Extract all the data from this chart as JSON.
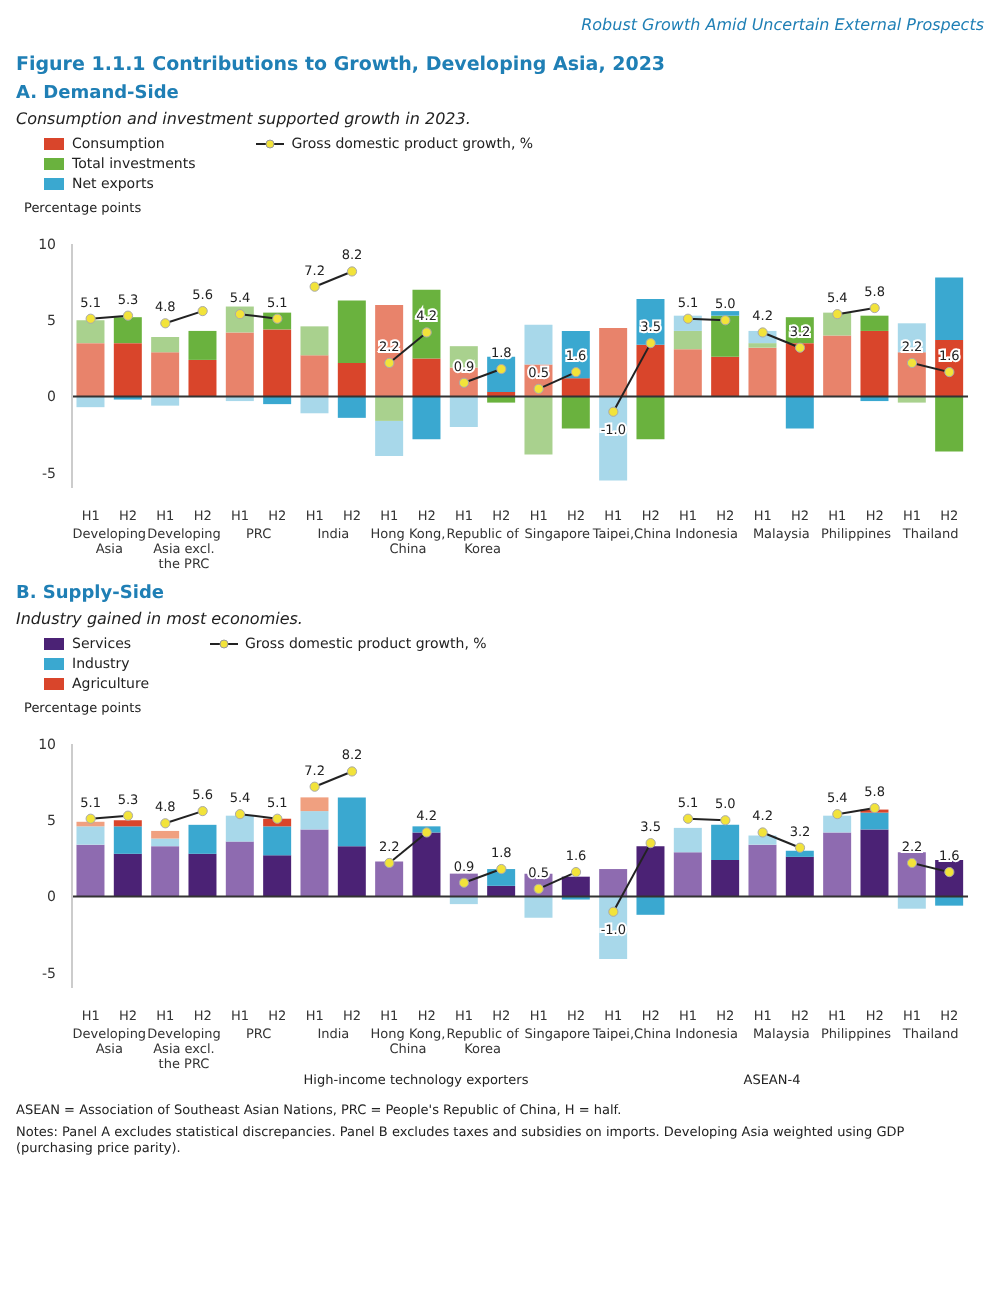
{
  "chart_data": [
    {
      "type": "bar",
      "title": "A. Demand-Side",
      "subtitle": "Consumption and investment supported growth in 2023.",
      "ylabel": "Percentage points",
      "annotations": [
        "Developing Asia",
        "Developing Asia excl. the PRC",
        "PRC",
        "India",
        "Hong Kong, China",
        "Republic of Korea",
        "Singapore",
        "Taipei,China",
        "Indonesia",
        "Malaysia",
        "Philippines",
        "Thailand",
        "Robust Growth Amid Uncertain External Prospects",
        "Figure 1.1.1  Contributions to Growth, Developing Asia, 2023"
      ],
      "categories": [
        "H1",
        "H2",
        "H1",
        "H2",
        "H1",
        "H2",
        "H1",
        "H2",
        "H1",
        "H2",
        "H1",
        "H2",
        "H1",
        "H2",
        "H1",
        "H2",
        "H1",
        "H2",
        "H1",
        "H2",
        "H1",
        "H2",
        "H1",
        "H2"
      ],
      "stacked": true,
      "ylim": [
        -6,
        10
      ],
      "yticks": [
        -5,
        0,
        5,
        10
      ],
      "legend": "top left",
      "marker": "circle",
      "ref_lines": [
        {
          "axis": "y",
          "value": 0,
          "color": "#333333"
        }
      ],
      "series": [
        {
          "name": "Consumption",
          "color": "#d9452b",
          "colors": [
            "#e8836b",
            "#d9452b",
            "#e8836b",
            "#d9452b",
            "#e8836b",
            "#d9452b",
            "#e8836b",
            "#d9452b",
            "#e8836b",
            "#d9452b",
            "#e8836b",
            "#d9452b",
            "#e8836b",
            "#d9452b",
            "#e8836b",
            "#d9452b",
            "#e8836b",
            "#d9452b",
            "#e8836b",
            "#d9452b",
            "#e8836b",
            "#d9452b",
            "#e8836b",
            "#d9452b"
          ],
          "values": [
            3.5,
            3.5,
            2.9,
            2.4,
            4.2,
            4.4,
            2.7,
            2.2,
            6.0,
            2.5,
            1.9,
            0.3,
            2.1,
            1.2,
            4.5,
            3.4,
            3.1,
            2.6,
            3.2,
            3.5,
            4.0,
            4.3,
            2.9,
            3.7
          ]
        },
        {
          "name": "Total investments",
          "color": "#6ab23e",
          "colors": [
            "#a9d18e",
            "#6ab23e",
            "#a9d18e",
            "#6ab23e",
            "#a9d18e",
            "#6ab23e",
            "#a9d18e",
            "#6ab23e",
            "#a9d18e",
            "#6ab23e",
            "#a9d18e",
            "#6ab23e",
            "#a9d18e",
            "#6ab23e",
            "#a9d18e",
            "#6ab23e",
            "#a9d18e",
            "#6ab23e",
            "#a9d18e",
            "#6ab23e",
            "#a9d18e",
            "#6ab23e",
            "#a9d18e",
            "#6ab23e"
          ],
          "values": [
            1.5,
            1.7,
            1.0,
            1.9,
            1.7,
            1.1,
            1.9,
            4.1,
            -1.6,
            4.5,
            1.4,
            -0.4,
            -3.8,
            -2.1,
            null,
            -2.8,
            1.2,
            2.7,
            0.3,
            1.7,
            1.5,
            1.0,
            -0.4,
            -3.6
          ]
        },
        {
          "name": "Net exports",
          "color": "#3aa8d0",
          "colors": [
            "#a8d8ea",
            "#3aa8d0",
            "#a8d8ea",
            "#3aa8d0",
            "#a8d8ea",
            "#3aa8d0",
            "#a8d8ea",
            "#3aa8d0",
            "#a8d8ea",
            "#3aa8d0",
            "#a8d8ea",
            "#3aa8d0",
            "#a8d8ea",
            "#3aa8d0",
            "#a8d8ea",
            "#3aa8d0",
            "#a8d8ea",
            "#3aa8d0",
            "#a8d8ea",
            "#3aa8d0",
            "#a8d8ea",
            "#3aa8d0",
            "#a8d8ea",
            "#3aa8d0"
          ],
          "values": [
            -0.7,
            -0.2,
            -0.6,
            null,
            -0.3,
            -0.5,
            -1.1,
            -1.4,
            -2.3,
            -2.8,
            -2.0,
            2.3,
            2.6,
            3.1,
            -5.5,
            3.0,
            1.0,
            0.3,
            0.8,
            -2.1,
            null,
            -0.3,
            1.9,
            4.1
          ]
        },
        {
          "name": "Gross domestic product growth, %",
          "type": "line",
          "color": "#f2e33a",
          "values": [
            5.1,
            5.3,
            4.8,
            5.6,
            5.4,
            5.1,
            7.2,
            8.2,
            2.2,
            4.2,
            0.9,
            1.8,
            0.5,
            1.6,
            -1.0,
            3.5,
            5.1,
            5.0,
            4.2,
            3.2,
            5.4,
            5.8,
            2.2,
            1.6
          ],
          "value_labels": [
            "5.1",
            "5.3",
            "4.8",
            "5.6",
            "5.4",
            "5.1",
            "7.2",
            "8.2",
            "2.2",
            "4.2",
            "0.9",
            "1.8",
            "0.5",
            "1.6",
            "-1.0",
            "3.5",
            "5.1",
            "5.0",
            "4.2",
            "3.2",
            "5.4",
            "5.8",
            "2.2",
            "1.6"
          ]
        }
      ]
    },
    {
      "type": "bar",
      "title": "B. Supply-Side",
      "subtitle": "Industry gained in most economies.",
      "ylabel": "Percentage points",
      "annotations": [
        "Developing Asia",
        "Developing Asia excl. the PRC",
        "PRC",
        "India",
        "Hong Kong, China",
        "Republic of Korea",
        "Singapore",
        "Taipei,China",
        "Indonesia",
        "Malaysia",
        "Philippines",
        "Thailand",
        "High-income technology exporters",
        "ASEAN-4",
        "ASEAN = Association of Southeast Asian Nations, PRC = People's Republic of China, H = half.",
        "Notes: Panel A excludes statistical discrepancies. Panel B excludes taxes and subsidies on imports. Developing Asia weighted using GDP (purchasing price parity)."
      ],
      "categories": [
        "H1",
        "H2",
        "H1",
        "H2",
        "H1",
        "H2",
        "H1",
        "H2",
        "H1",
        "H2",
        "H1",
        "H2",
        "H1",
        "H2",
        "H1",
        "H2",
        "H1",
        "H2",
        "H1",
        "H2",
        "H1",
        "H2",
        "H1",
        "H2"
      ],
      "stacked": true,
      "ylim": [
        -6,
        10
      ],
      "yticks": [
        -5,
        0,
        5,
        10
      ],
      "legend": "top left",
      "marker": "circle",
      "ref_lines": [
        {
          "axis": "y",
          "value": 0,
          "color": "#333333"
        }
      ],
      "series": [
        {
          "name": "Services",
          "color": "#4b2275",
          "colors": [
            "#8e6bb0",
            "#4b2275",
            "#8e6bb0",
            "#4b2275",
            "#8e6bb0",
            "#4b2275",
            "#8e6bb0",
            "#4b2275",
            "#8e6bb0",
            "#4b2275",
            "#8e6bb0",
            "#4b2275",
            "#8e6bb0",
            "#4b2275",
            "#8e6bb0",
            "#4b2275",
            "#8e6bb0",
            "#4b2275",
            "#8e6bb0",
            "#4b2275",
            "#8e6bb0",
            "#4b2275",
            "#8e6bb0",
            "#4b2275"
          ],
          "values": [
            3.4,
            2.8,
            3.3,
            2.8,
            3.6,
            2.7,
            4.4,
            3.3,
            2.3,
            4.2,
            1.5,
            0.7,
            1.5,
            1.3,
            1.8,
            3.3,
            2.9,
            2.4,
            3.4,
            2.6,
            4.2,
            4.4,
            2.9,
            2.4
          ]
        },
        {
          "name": "Industry",
          "color": "#3aa8d0",
          "colors": [
            "#a8d8ea",
            "#3aa8d0",
            "#a8d8ea",
            "#3aa8d0",
            "#a8d8ea",
            "#3aa8d0",
            "#a8d8ea",
            "#3aa8d0",
            "#a8d8ea",
            "#3aa8d0",
            "#a8d8ea",
            "#3aa8d0",
            "#a8d8ea",
            "#3aa8d0",
            "#a8d8ea",
            "#3aa8d0",
            "#a8d8ea",
            "#3aa8d0",
            "#a8d8ea",
            "#3aa8d0",
            "#a8d8ea",
            "#3aa8d0",
            "#a8d8ea",
            "#3aa8d0"
          ],
          "values": [
            1.2,
            1.8,
            0.5,
            1.9,
            1.7,
            1.9,
            1.2,
            3.2,
            null,
            0.4,
            -0.5,
            1.1,
            -1.4,
            -0.2,
            -4.1,
            -1.2,
            1.6,
            2.3,
            0.6,
            0.4,
            1.1,
            1.1,
            -0.8,
            -0.6
          ]
        },
        {
          "name": "Agriculture",
          "color": "#d9452b",
          "colors": [
            "#f0a080",
            "#d9452b",
            "#f0a080",
            "#d9452b",
            "#f0a080",
            "#d9452b",
            "#f0a080",
            "#d9452b",
            "#f0a080",
            "#d9452b",
            "#f0a080",
            "#d9452b",
            "#f0a080",
            "#d9452b",
            "#f0a080",
            "#d9452b",
            "#f0a080",
            "#d9452b",
            "#f0a080",
            "#d9452b",
            "#f0a080",
            "#d9452b",
            "#f0a080",
            "#d9452b"
          ],
          "values": [
            0.3,
            0.4,
            0.5,
            null,
            null,
            0.5,
            0.9,
            null,
            null,
            null,
            null,
            null,
            null,
            null,
            null,
            null,
            null,
            null,
            null,
            null,
            null,
            0.2,
            null,
            null
          ]
        },
        {
          "name": "Gross domestic product growth, %",
          "type": "line",
          "color": "#f2e33a",
          "values": [
            5.1,
            5.3,
            4.8,
            5.6,
            5.4,
            5.1,
            7.2,
            8.2,
            2.2,
            4.2,
            0.9,
            1.8,
            0.5,
            1.6,
            -1.0,
            3.5,
            5.1,
            5.0,
            4.2,
            3.2,
            5.4,
            5.8,
            2.2,
            1.6
          ],
          "value_labels": [
            "5.1",
            "5.3",
            "4.8",
            "5.6",
            "5.4",
            "5.1",
            "7.2",
            "8.2",
            "2.2",
            "4.2",
            "0.9",
            "1.8",
            "0.5",
            "1.6",
            "-1.0",
            "3.5",
            "5.1",
            "5.0",
            "4.2",
            "3.2",
            "5.4",
            "5.8",
            "2.2",
            "1.6"
          ]
        }
      ]
    }
  ]
}
